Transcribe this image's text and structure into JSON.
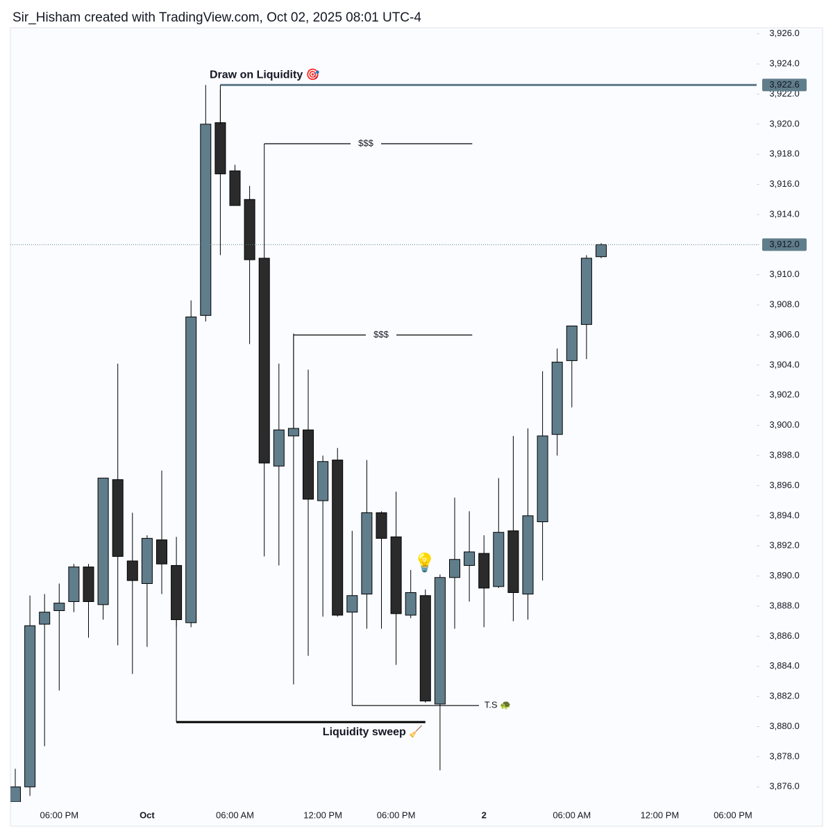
{
  "chart_data": {
    "type": "candlestick",
    "title": "Sir_Hisham created with TradingView.com, Oct 02, 2025 08:01 UTC-4",
    "categories": [
      null,
      null,
      null,
      "06:00 PM",
      null,
      null,
      null,
      null,
      null,
      "Oct",
      null,
      null,
      null,
      null,
      null,
      "06:00 AM",
      null,
      null,
      null,
      null,
      null,
      "12:00 PM",
      null,
      null,
      null,
      null,
      "06:00 PM",
      null,
      null,
      null,
      null,
      null,
      "2",
      null,
      null,
      null,
      null,
      null,
      "06:00 AM",
      null,
      null,
      null,
      null,
      null,
      "12:00 PM",
      null,
      null,
      null,
      null,
      "06:00 PM"
    ],
    "open": [
      3875.0,
      3876.0,
      3886.8,
      3887.7,
      3888.3,
      3890.6,
      3888.1,
      3896.4,
      3891.0,
      3889.5,
      3892.4,
      3890.7,
      3886.9,
      3907.3,
      3920.1,
      3916.9,
      3915.0,
      3911.1,
      3897.3,
      3899.3,
      3899.7,
      3895.0,
      3897.7,
      3887.6,
      3888.8,
      3894.2,
      3892.6,
      3887.4,
      3888.7,
      3881.5,
      3889.9,
      3890.7,
      3891.5,
      3889.3,
      3893.0,
      3888.8,
      3893.6,
      3899.4,
      3904.3,
      3906.7,
      3911.2,
      null,
      null,
      null,
      null,
      null,
      null,
      null,
      null,
      null
    ],
    "high": [
      3877.2,
      3888.7,
      3888.8,
      3889.5,
      3890.8,
      3890.8,
      3896.5,
      3904.1,
      3894.2,
      3892.7,
      3897.0,
      3892.6,
      3908.3,
      3922.6,
      3922.3,
      3917.3,
      3915.9,
      3911.1,
      3904.1,
      3906.1,
      3903.7,
      3898.0,
      3898.5,
      3893.0,
      3897.7,
      3894.3,
      3895.6,
      3890.4,
      3889.1,
      3890.1,
      3895.2,
      3894.3,
      3892.7,
      3896.5,
      3899.3,
      3899.8,
      3903.6,
      3905.1,
      3906.6,
      3911.3,
      3912.1,
      null,
      null,
      null,
      null,
      null,
      null,
      null,
      null,
      null
    ],
    "low": [
      3875.0,
      3875.4,
      3878.7,
      3882.4,
      3887.6,
      3885.9,
      3887.1,
      3885.4,
      3883.5,
      3885.3,
      3888.8,
      3886.6,
      3886.6,
      3906.9,
      3911.3,
      3914.6,
      3905.4,
      3891.3,
      3890.7,
      3882.8,
      3884.7,
      3887.3,
      3887.3,
      3887.6,
      3886.5,
      3886.5,
      3884.1,
      3887.2,
      3881.6,
      3877.1,
      3886.5,
      3888.3,
      3886.6,
      3889.2,
      3887.0,
      3887.1,
      3889.7,
      3898.0,
      3901.2,
      3904.4,
      3911.1,
      null,
      null,
      null,
      null,
      null,
      null,
      null,
      null,
      null
    ],
    "close": [
      3876.0,
      3886.7,
      3887.6,
      3888.2,
      3890.6,
      3888.3,
      3896.5,
      3891.3,
      3889.7,
      3892.5,
      3890.8,
      3887.1,
      3907.2,
      3920.0,
      3916.7,
      3914.6,
      3911.0,
      3897.5,
      3899.7,
      3899.8,
      3895.1,
      3897.6,
      3887.4,
      3888.7,
      3894.2,
      3892.5,
      3887.5,
      3888.9,
      3881.7,
      3889.9,
      3891.1,
      3891.6,
      3889.2,
      3892.9,
      3888.9,
      3894.0,
      3899.3,
      3904.2,
      3906.6,
      3911.1,
      3912.0,
      null,
      null,
      null,
      null,
      null,
      null,
      null,
      null,
      null
    ],
    "up_color": "#607d8b",
    "down_color": "#2b2b2b",
    "ylim": [
      3875.0,
      3926.4
    ],
    "yticks": [
      {
        "value": 3876,
        "label": "3,876.0"
      },
      {
        "value": 3878,
        "label": "3,878.0"
      },
      {
        "value": 3880,
        "label": "3,880.0"
      },
      {
        "value": 3882,
        "label": "3,882.0"
      },
      {
        "value": 3884,
        "label": "3,884.0"
      },
      {
        "value": 3886,
        "label": "3,886.0"
      },
      {
        "value": 3888,
        "label": "3,888.0"
      },
      {
        "value": 3890,
        "label": "3,890.0"
      },
      {
        "value": 3892,
        "label": "3,892.0"
      },
      {
        "value": 3894,
        "label": "3,894.0"
      },
      {
        "value": 3896,
        "label": "3,896.0"
      },
      {
        "value": 3898,
        "label": "3,898.0"
      },
      {
        "value": 3900,
        "label": "3,900.0"
      },
      {
        "value": 3902,
        "label": "3,902.0"
      },
      {
        "value": 3904,
        "label": "3,904.0"
      },
      {
        "value": 3906,
        "label": "3,906.0"
      },
      {
        "value": 3908,
        "label": "3,908.0"
      },
      {
        "value": 3910,
        "label": "3,910.0"
      },
      {
        "value": 3912,
        "label": "3,912.0"
      },
      {
        "value": 3914,
        "label": "3,914.0"
      },
      {
        "value": 3916,
        "label": "3,916.0"
      },
      {
        "value": 3918,
        "label": "3,918.0"
      },
      {
        "value": 3920,
        "label": "3,920.0"
      },
      {
        "value": 3922,
        "label": "3,922.0"
      },
      {
        "value": 3924,
        "label": "3,924.0"
      },
      {
        "value": 3926,
        "label": "3,926.0"
      }
    ],
    "price_lines": [
      {
        "value": 3922.6,
        "label": "3,922.6"
      },
      {
        "value": 3912.0,
        "label": "3,912.0"
      }
    ],
    "annotations": [
      {
        "text": "Draw on Liquidity 🎯",
        "level": 3922.6
      },
      {
        "text": "$$$",
        "level": 3918.7
      },
      {
        "text": "$$$",
        "level": 3906.0
      },
      {
        "text": "Liquidity sweep 🧹",
        "level": 3880.3
      },
      {
        "text": "T.S 🐢",
        "level": 3881.4
      },
      {
        "text": "💡"
      }
    ]
  }
}
